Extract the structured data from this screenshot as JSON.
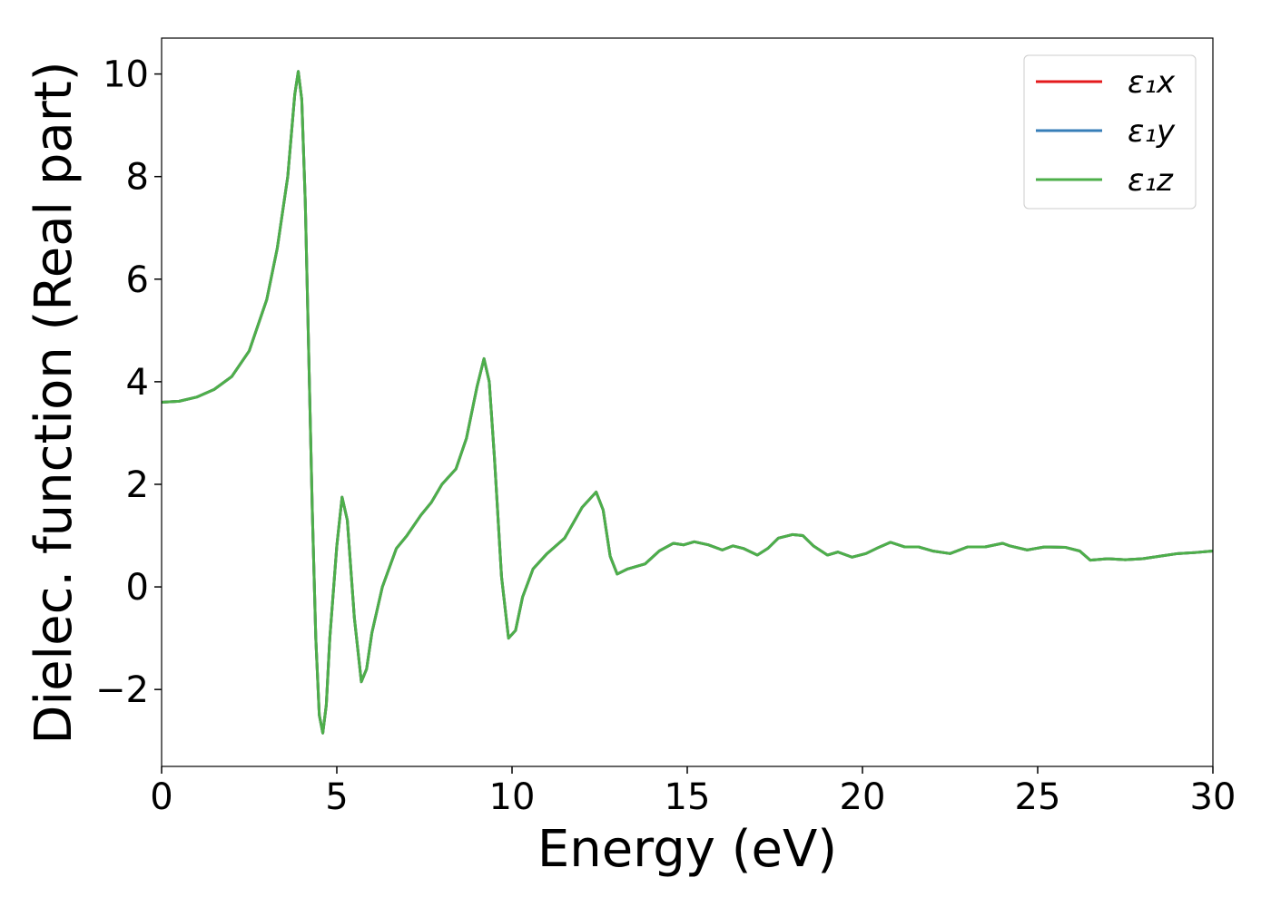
{
  "chart_data": {
    "type": "line",
    "x_label": "Energy (eV)",
    "y_label": "Dielec. function (Real part)",
    "x": [
      0,
      0.5,
      1,
      1.5,
      2,
      2.5,
      3,
      3.3,
      3.6,
      3.8,
      3.9,
      4.0,
      4.1,
      4.2,
      4.3,
      4.4,
      4.5,
      4.6,
      4.7,
      4.8,
      5.0,
      5.15,
      5.3,
      5.5,
      5.7,
      5.85,
      6.0,
      6.3,
      6.7,
      7.0,
      7.4,
      7.7,
      8.0,
      8.4,
      8.7,
      9.0,
      9.2,
      9.35,
      9.5,
      9.7,
      9.9,
      10.1,
      10.3,
      10.6,
      11.0,
      11.5,
      12.0,
      12.4,
      12.6,
      12.8,
      13.0,
      13.3,
      13.8,
      14.2,
      14.6,
      14.9,
      15.2,
      15.6,
      16.0,
      16.3,
      16.6,
      17.0,
      17.3,
      17.6,
      18.0,
      18.3,
      18.6,
      19.0,
      19.3,
      19.7,
      20.1,
      20.4,
      20.8,
      21.2,
      21.6,
      22.0,
      22.5,
      23.0,
      23.5,
      24.0,
      24.2,
      24.7,
      25.2,
      25.8,
      26.2,
      26.5,
      27.0,
      27.5,
      28.0,
      28.5,
      29.0,
      29.5,
      30
    ],
    "series": [
      {
        "name": "ε₁x",
        "color": "#e41a1c",
        "values": [
          3.6,
          3.62,
          3.7,
          3.85,
          4.1,
          4.6,
          5.6,
          6.6,
          8.0,
          9.6,
          10.05,
          9.5,
          7.5,
          4.5,
          1.5,
          -1.0,
          -2.5,
          -2.85,
          -2.3,
          -1.0,
          0.8,
          1.75,
          1.3,
          -0.6,
          -1.85,
          -1.6,
          -0.9,
          0.0,
          0.75,
          1.0,
          1.4,
          1.65,
          2.0,
          2.3,
          2.9,
          3.9,
          4.45,
          4.0,
          2.5,
          0.2,
          -1.0,
          -0.85,
          -0.2,
          0.35,
          0.65,
          0.95,
          1.55,
          1.85,
          1.5,
          0.6,
          0.25,
          0.35,
          0.45,
          0.7,
          0.85,
          0.82,
          0.88,
          0.82,
          0.72,
          0.8,
          0.75,
          0.62,
          0.75,
          0.95,
          1.02,
          1.0,
          0.8,
          0.62,
          0.68,
          0.58,
          0.65,
          0.75,
          0.87,
          0.78,
          0.78,
          0.7,
          0.65,
          0.78,
          0.78,
          0.85,
          0.8,
          0.72,
          0.78,
          0.77,
          0.7,
          0.52,
          0.55,
          0.53,
          0.55,
          0.6,
          0.65,
          0.67,
          0.7
        ]
      },
      {
        "name": "ε₁y",
        "color": "#377eb8",
        "values": [
          3.6,
          3.62,
          3.7,
          3.85,
          4.1,
          4.6,
          5.6,
          6.6,
          8.0,
          9.6,
          10.05,
          9.5,
          7.5,
          4.5,
          1.5,
          -1.0,
          -2.5,
          -2.85,
          -2.3,
          -1.0,
          0.8,
          1.75,
          1.3,
          -0.6,
          -1.85,
          -1.6,
          -0.9,
          0.0,
          0.75,
          1.0,
          1.4,
          1.65,
          2.0,
          2.3,
          2.9,
          3.9,
          4.45,
          4.0,
          2.5,
          0.2,
          -1.0,
          -0.85,
          -0.2,
          0.35,
          0.65,
          0.95,
          1.55,
          1.85,
          1.5,
          0.6,
          0.25,
          0.35,
          0.45,
          0.7,
          0.85,
          0.82,
          0.88,
          0.82,
          0.72,
          0.8,
          0.75,
          0.62,
          0.75,
          0.95,
          1.02,
          1.0,
          0.8,
          0.62,
          0.68,
          0.58,
          0.65,
          0.75,
          0.87,
          0.78,
          0.78,
          0.7,
          0.65,
          0.78,
          0.78,
          0.85,
          0.8,
          0.72,
          0.78,
          0.77,
          0.7,
          0.52,
          0.55,
          0.53,
          0.55,
          0.6,
          0.65,
          0.67,
          0.7
        ]
      },
      {
        "name": "ε₁z",
        "color": "#4daf4a",
        "values": [
          3.6,
          3.62,
          3.7,
          3.85,
          4.1,
          4.6,
          5.6,
          6.6,
          8.0,
          9.6,
          10.05,
          9.5,
          7.5,
          4.5,
          1.5,
          -1.0,
          -2.5,
          -2.85,
          -2.3,
          -1.0,
          0.8,
          1.75,
          1.3,
          -0.6,
          -1.85,
          -1.6,
          -0.9,
          0.0,
          0.75,
          1.0,
          1.4,
          1.65,
          2.0,
          2.3,
          2.9,
          3.9,
          4.45,
          4.0,
          2.5,
          0.2,
          -1.0,
          -0.85,
          -0.2,
          0.35,
          0.65,
          0.95,
          1.55,
          1.85,
          1.5,
          0.6,
          0.25,
          0.35,
          0.45,
          0.7,
          0.85,
          0.82,
          0.88,
          0.82,
          0.72,
          0.8,
          0.75,
          0.62,
          0.75,
          0.95,
          1.02,
          1.0,
          0.8,
          0.62,
          0.68,
          0.58,
          0.65,
          0.75,
          0.87,
          0.78,
          0.78,
          0.7,
          0.65,
          0.78,
          0.78,
          0.85,
          0.8,
          0.72,
          0.78,
          0.77,
          0.7,
          0.52,
          0.55,
          0.53,
          0.55,
          0.6,
          0.65,
          0.67,
          0.7
        ]
      }
    ],
    "xlim": [
      0,
      30
    ],
    "xticks": [
      0,
      5,
      10,
      15,
      20,
      25,
      30
    ],
    "ylim": [
      -3.5,
      10.7
    ],
    "yticks": [
      {
        "value": -2,
        "label": "−2"
      },
      0,
      2,
      4,
      6,
      8,
      10
    ],
    "grid": false,
    "legend": "upper right"
  }
}
